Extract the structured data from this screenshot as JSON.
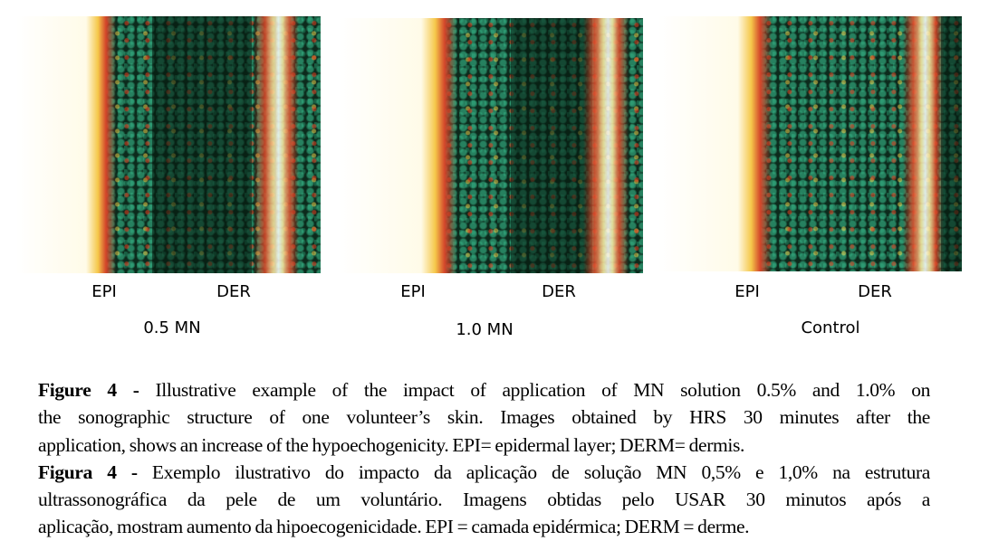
{
  "panels": [
    {
      "epi_label": "EPI",
      "der_label": "DER",
      "condition": "0.5 MN"
    },
    {
      "epi_label": "EPI",
      "der_label": "DER",
      "condition": "1.0 MN"
    },
    {
      "epi_label": "EPI",
      "der_label": "DER",
      "condition": "Control"
    }
  ],
  "caption": {
    "en_prefix": "Figure 4 -",
    "en_lines": [
      " Illustrative example of the impact of application of MN solution 0.5% and 1.0% on",
      "the sonographic structure of one volunteer’s skin. Images obtained by HRS 30 minutes after the",
      "application, shows an increase of the hypoechogenicity. EPI= epidermal layer; DERM= dermis."
    ],
    "pt_prefix": "Figura 4 -",
    "pt_lines": [
      " Exemplo ilustrativo do impacto da aplicação de solução MN 0,5% e 1,0% na estrutura",
      "ultrassonográfica da pele de um voluntário. Imagens obtidas pelo USAR 30 minutos após a",
      "aplicação, mostram aumento da hipoecogenicidade. EPI = camada epidérmica; DERM = derme."
    ]
  },
  "colors": {
    "tissue_background": "#0c2a1c",
    "speckle_green": "#3cc896",
    "hyperechoic": "#ffffff",
    "echo_red": "#e04a2a",
    "echo_yellow": "#f5c84a"
  }
}
